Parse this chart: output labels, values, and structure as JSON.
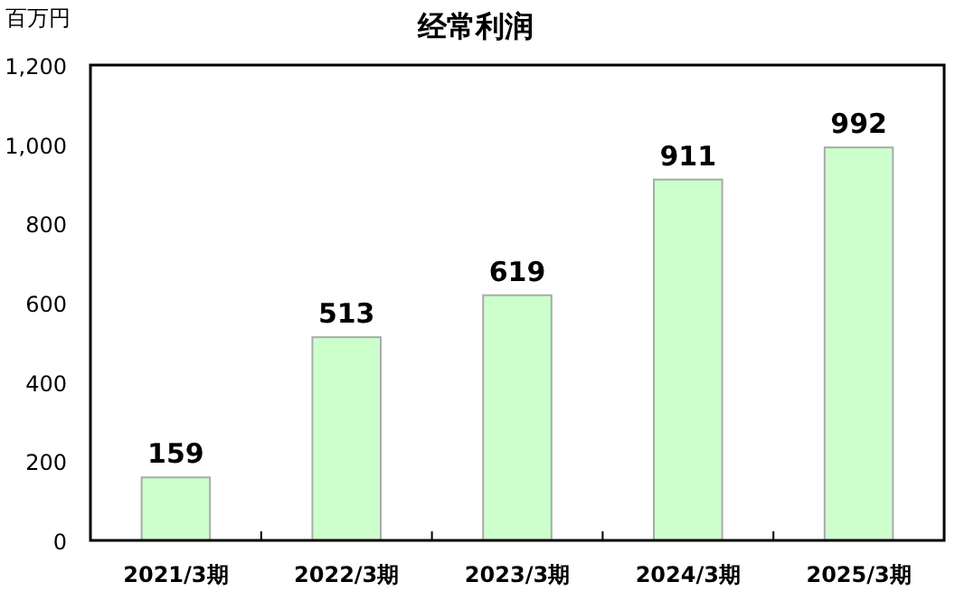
{
  "chart_data": {
    "type": "bar",
    "title": "经常利润",
    "ylabel": "百万円",
    "categories": [
      "2021/3期",
      "2022/3期",
      "2023/3期",
      "2024/3期",
      "2025/3期"
    ],
    "values": [
      159,
      513,
      619,
      911,
      992
    ],
    "color": "#ccffcc",
    "data_labels": true,
    "grid": false,
    "ylim": [
      0,
      1200
    ],
    "yticks": [
      0,
      200,
      400,
      600,
      800,
      {
        "value": 1000,
        "label": "1,000"
      },
      {
        "value": 1200,
        "label": "1,200"
      }
    ]
  }
}
